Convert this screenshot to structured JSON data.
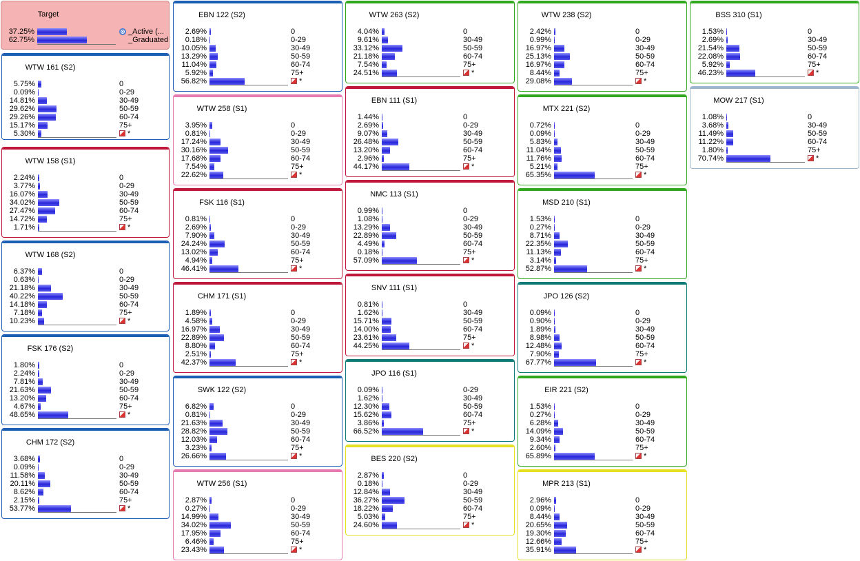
{
  "colors": {
    "red": "#c0183a",
    "blue": "#1a5fb4",
    "green": "#2fa81e",
    "pink": "#e878b0",
    "teal": "#0f7b78",
    "yellow": "#e6e020",
    "grey": "#9bb7cf"
  },
  "target": {
    "title": "Target",
    "rows": [
      {
        "pct": "37.25%",
        "label": "_Active (...",
        "value": 37.25
      },
      {
        "pct": "62.75%",
        "label": "_Graduated ...",
        "value": 62.75
      }
    ]
  },
  "nodes": [
    {
      "title": "WTW 161 (S2)",
      "color": "blue",
      "rows": [
        [
          "5.75%",
          "0",
          5.75
        ],
        [
          "0.09%",
          "0-29",
          0.09
        ],
        [
          "14.81%",
          "30-49",
          14.81
        ],
        [
          "29.62%",
          "50-59",
          29.62
        ],
        [
          "29.26%",
          "60-74",
          29.26
        ],
        [
          "15.17%",
          "75+",
          15.17
        ],
        [
          "5.30%",
          "*",
          5.3
        ]
      ]
    },
    {
      "title": "WTW 158 (S1)",
      "color": "red",
      "rows": [
        [
          "2.24%",
          "0",
          2.24
        ],
        [
          "3.77%",
          "0-29",
          3.77
        ],
        [
          "16.07%",
          "30-49",
          16.07
        ],
        [
          "34.02%",
          "50-59",
          34.02
        ],
        [
          "27.47%",
          "60-74",
          27.47
        ],
        [
          "14.72%",
          "75+",
          14.72
        ],
        [
          "1.71%",
          "*",
          1.71
        ]
      ]
    },
    {
      "title": "WTW 168 (S2)",
      "color": "blue",
      "rows": [
        [
          "6.37%",
          "0",
          6.37
        ],
        [
          "0.63%",
          "0-29",
          0.63
        ],
        [
          "21.18%",
          "30-49",
          21.18
        ],
        [
          "40.22%",
          "50-59",
          40.22
        ],
        [
          "14.18%",
          "60-74",
          14.18
        ],
        [
          "7.18%",
          "75+",
          7.18
        ],
        [
          "10.23%",
          "*",
          10.23
        ]
      ]
    },
    {
      "title": "FSK 176 (S2)",
      "color": "blue",
      "rows": [
        [
          "1.80%",
          "0",
          1.8
        ],
        [
          "2.24%",
          "0-29",
          2.24
        ],
        [
          "7.81%",
          "30-49",
          7.81
        ],
        [
          "21.63%",
          "50-59",
          21.63
        ],
        [
          "13.20%",
          "60-74",
          13.2
        ],
        [
          "4.67%",
          "75+",
          4.67
        ],
        [
          "48.65%",
          "*",
          48.65
        ]
      ]
    },
    {
      "title": "CHM 172 (S2)",
      "color": "blue",
      "rows": [
        [
          "3.68%",
          "0",
          3.68
        ],
        [
          "0.09%",
          "0-29",
          0.09
        ],
        [
          "11.58%",
          "30-49",
          11.58
        ],
        [
          "20.11%",
          "50-59",
          20.11
        ],
        [
          "8.62%",
          "60-74",
          8.62
        ],
        [
          "2.15%",
          "75+",
          2.15
        ],
        [
          "53.77%",
          "*",
          53.77
        ]
      ]
    },
    {
      "title": "EBN 122 (S2)",
      "color": "blue",
      "rows": [
        [
          "2.69%",
          "0",
          2.69
        ],
        [
          "0.18%",
          "0-29",
          0.18
        ],
        [
          "10.05%",
          "30-49",
          10.05
        ],
        [
          "13.29%",
          "50-59",
          13.29
        ],
        [
          "11.04%",
          "60-74",
          11.04
        ],
        [
          "5.92%",
          "75+",
          5.92
        ],
        [
          "56.82%",
          "*",
          56.82
        ]
      ]
    },
    {
      "title": "WTW 258 (S1)",
      "color": "pink",
      "rows": [
        [
          "3.95%",
          "0",
          3.95
        ],
        [
          "0.81%",
          "0-29",
          0.81
        ],
        [
          "17.24%",
          "30-49",
          17.24
        ],
        [
          "30.16%",
          "50-59",
          30.16
        ],
        [
          "17.68%",
          "60-74",
          17.68
        ],
        [
          "7.54%",
          "75+",
          7.54
        ],
        [
          "22.62%",
          "*",
          22.62
        ]
      ]
    },
    {
      "title": "FSK 116 (S1)",
      "color": "red",
      "rows": [
        [
          "0.81%",
          "0",
          0.81
        ],
        [
          "2.69%",
          "0-29",
          2.69
        ],
        [
          "7.90%",
          "30-49",
          7.9
        ],
        [
          "24.24%",
          "50-59",
          24.24
        ],
        [
          "13.02%",
          "60-74",
          13.02
        ],
        [
          "4.94%",
          "75+",
          4.94
        ],
        [
          "46.41%",
          "*",
          46.41
        ]
      ]
    },
    {
      "title": "CHM 171 (S1)",
      "color": "red",
      "rows": [
        [
          "1.89%",
          "0",
          1.89
        ],
        [
          "4.58%",
          "0-29",
          4.58
        ],
        [
          "16.97%",
          "30-49",
          16.97
        ],
        [
          "22.89%",
          "50-59",
          22.89
        ],
        [
          "8.80%",
          "60-74",
          8.8
        ],
        [
          "2.51%",
          "75+",
          2.51
        ],
        [
          "42.37%",
          "*",
          42.37
        ]
      ]
    },
    {
      "title": "SWK 122 (S2)",
      "color": "blue",
      "rows": [
        [
          "6.82%",
          "0",
          6.82
        ],
        [
          "0.81%",
          "0-29",
          0.81
        ],
        [
          "21.63%",
          "30-49",
          21.63
        ],
        [
          "28.82%",
          "50-59",
          28.82
        ],
        [
          "12.03%",
          "60-74",
          12.03
        ],
        [
          "3.23%",
          "75+",
          3.23
        ],
        [
          "26.66%",
          "*",
          26.66
        ]
      ]
    },
    {
      "title": "WTW 256 (S1)",
      "color": "pink",
      "rows": [
        [
          "2.87%",
          "0",
          2.87
        ],
        [
          "0.27%",
          "0-29",
          0.27
        ],
        [
          "14.99%",
          "30-49",
          14.99
        ],
        [
          "34.02%",
          "50-59",
          34.02
        ],
        [
          "17.95%",
          "60-74",
          17.95
        ],
        [
          "6.46%",
          "75+",
          6.46
        ],
        [
          "23.43%",
          "*",
          23.43
        ]
      ]
    },
    {
      "title": "WTW 263 (S2)",
      "color": "green",
      "rows": [
        [
          "4.04%",
          "0",
          4.04
        ],
        [
          "9.61%",
          "30-49",
          9.61
        ],
        [
          "33.12%",
          "50-59",
          33.12
        ],
        [
          "21.18%",
          "60-74",
          21.18
        ],
        [
          "7.54%",
          "75+",
          7.54
        ],
        [
          "24.51%",
          "*",
          24.51
        ]
      ]
    },
    {
      "title": "EBN 111 (S1)",
      "color": "red",
      "rows": [
        [
          "1.44%",
          "0",
          1.44
        ],
        [
          "2.69%",
          "0-29",
          2.69
        ],
        [
          "9.07%",
          "30-49",
          9.07
        ],
        [
          "26.48%",
          "50-59",
          26.48
        ],
        [
          "13.20%",
          "60-74",
          13.2
        ],
        [
          "2.96%",
          "75+",
          2.96
        ],
        [
          "44.17%",
          "*",
          44.17
        ]
      ]
    },
    {
      "title": "NMC 113 (S1)",
      "color": "red",
      "rows": [
        [
          "0.99%",
          "0",
          0.99
        ],
        [
          "1.08%",
          "0-29",
          1.08
        ],
        [
          "13.29%",
          "30-49",
          13.29
        ],
        [
          "22.89%",
          "50-59",
          22.89
        ],
        [
          "4.49%",
          "60-74",
          4.49
        ],
        [
          "0.18%",
          "75+",
          0.18
        ],
        [
          "57.09%",
          "*",
          57.09
        ]
      ]
    },
    {
      "title": "SNV 111 (S1)",
      "color": "red",
      "rows": [
        [
          "0.81%",
          "0",
          0.81
        ],
        [
          "1.62%",
          "30-49",
          1.62
        ],
        [
          "15.71%",
          "50-59",
          15.71
        ],
        [
          "14.00%",
          "60-74",
          14.0
        ],
        [
          "23.61%",
          "75+",
          23.61
        ],
        [
          "44.25%",
          "*",
          44.25
        ]
      ]
    },
    {
      "title": "JPO 116 (S1)",
      "color": "teal",
      "rows": [
        [
          "0.09%",
          "0-29",
          0.09
        ],
        [
          "1.62%",
          "30-49",
          1.62
        ],
        [
          "12.30%",
          "50-59",
          12.3
        ],
        [
          "15.62%",
          "60-74",
          15.62
        ],
        [
          "3.86%",
          "75+",
          3.86
        ],
        [
          "66.52%",
          "*",
          66.52
        ]
      ]
    },
    {
      "title": "BES 220 (S2)",
      "color": "yellow",
      "rows": [
        [
          "2.87%",
          "0",
          2.87
        ],
        [
          "0.18%",
          "0-29",
          0.18
        ],
        [
          "12.84%",
          "30-49",
          12.84
        ],
        [
          "36.27%",
          "50-59",
          36.27
        ],
        [
          "18.22%",
          "60-74",
          18.22
        ],
        [
          "5.03%",
          "75+",
          5.03
        ],
        [
          "24.60%",
          "*",
          24.6
        ]
      ]
    },
    {
      "title": "WTW 238 (S2)",
      "color": "green",
      "rows": [
        [
          "2.42%",
          "0",
          2.42
        ],
        [
          "0.99%",
          "0-29",
          0.99
        ],
        [
          "16.97%",
          "30-49",
          16.97
        ],
        [
          "25.13%",
          "50-59",
          25.13
        ],
        [
          "16.97%",
          "60-74",
          16.97
        ],
        [
          "8.44%",
          "75+",
          8.44
        ],
        [
          "29.08%",
          "*",
          29.08
        ]
      ]
    },
    {
      "title": "MTX 221 (S2)",
      "color": "green",
      "rows": [
        [
          "0.72%",
          "0",
          0.72
        ],
        [
          "0.09%",
          "0-29",
          0.09
        ],
        [
          "5.83%",
          "30-49",
          5.83
        ],
        [
          "11.04%",
          "50-59",
          11.04
        ],
        [
          "11.76%",
          "60-74",
          11.76
        ],
        [
          "5.21%",
          "75+",
          5.21
        ],
        [
          "65.35%",
          "*",
          65.35
        ]
      ]
    },
    {
      "title": "MSD 210 (S1)",
      "color": "green",
      "rows": [
        [
          "1.53%",
          "0",
          1.53
        ],
        [
          "0.27%",
          "0-29",
          0.27
        ],
        [
          "8.71%",
          "30-49",
          8.71
        ],
        [
          "22.35%",
          "50-59",
          22.35
        ],
        [
          "11.13%",
          "60-74",
          11.13
        ],
        [
          "3.14%",
          "75+",
          3.14
        ],
        [
          "52.87%",
          "*",
          52.87
        ]
      ]
    },
    {
      "title": "JPO 126 (S2)",
      "color": "teal",
      "rows": [
        [
          "0.09%",
          "0",
          0.09
        ],
        [
          "0.90%",
          "0-29",
          0.9
        ],
        [
          "1.89%",
          "30-49",
          1.89
        ],
        [
          "8.98%",
          "50-59",
          8.98
        ],
        [
          "12.48%",
          "60-74",
          12.48
        ],
        [
          "7.90%",
          "75+",
          7.9
        ],
        [
          "67.77%",
          "*",
          67.77
        ]
      ]
    },
    {
      "title": "EIR 221 (S2)",
      "color": "green",
      "rows": [
        [
          "1.53%",
          "0",
          1.53
        ],
        [
          "0.27%",
          "0-29",
          0.27
        ],
        [
          "6.28%",
          "30-49",
          6.28
        ],
        [
          "14.09%",
          "50-59",
          14.09
        ],
        [
          "9.34%",
          "60-74",
          9.34
        ],
        [
          "2.60%",
          "75+",
          2.6
        ],
        [
          "65.89%",
          "*",
          65.89
        ]
      ]
    },
    {
      "title": "MPR 213 (S1)",
      "color": "yellow",
      "rows": [
        [
          "2.96%",
          "0",
          2.96
        ],
        [
          "0.09%",
          "0-29",
          0.09
        ],
        [
          "8.44%",
          "30-49",
          8.44
        ],
        [
          "20.65%",
          "50-59",
          20.65
        ],
        [
          "19.30%",
          "60-74",
          19.3
        ],
        [
          "12.66%",
          "75+",
          12.66
        ],
        [
          "35.91%",
          "*",
          35.91
        ]
      ]
    },
    {
      "title": "BSS 310 (S1)",
      "color": "green",
      "rows": [
        [
          "1.53%",
          "0",
          1.53
        ],
        [
          "2.69%",
          "30-49",
          2.69
        ],
        [
          "21.54%",
          "50-59",
          21.54
        ],
        [
          "22.08%",
          "60-74",
          22.08
        ],
        [
          "5.92%",
          "75+",
          5.92
        ],
        [
          "46.23%",
          "*",
          46.23
        ]
      ]
    },
    {
      "title": "MOW 217 (S1)",
      "color": "grey",
      "rows": [
        [
          "1.08%",
          "0",
          1.08
        ],
        [
          "3.68%",
          "30-49",
          3.68
        ],
        [
          "11.49%",
          "50-59",
          11.49
        ],
        [
          "11.22%",
          "60-74",
          11.22
        ],
        [
          "1.80%",
          "75+",
          1.8
        ],
        [
          "70.74%",
          "*",
          70.74
        ]
      ]
    }
  ],
  "chart_data": {
    "type": "bar",
    "title": "",
    "panels": "decision-tree node distributions (percent per category)"
  }
}
